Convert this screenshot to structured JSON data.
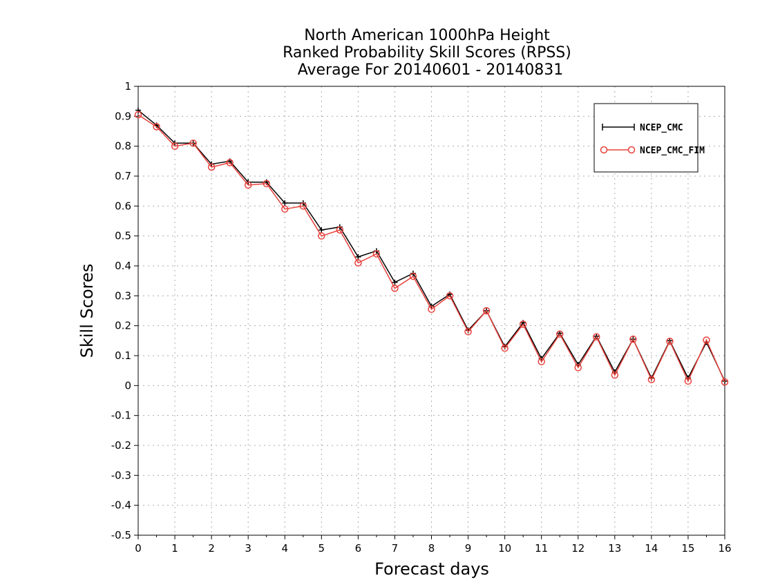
{
  "chart_data": {
    "type": "line",
    "title": [
      "North American 1000hPa Height",
      "Ranked Probability Skill Scores (RPSS)",
      "Average For 20140601 - 20140831"
    ],
    "xlabel": "Forecast days",
    "ylabel": "Skill Scores",
    "xlim": [
      0,
      16
    ],
    "ylim": [
      -0.5,
      1
    ],
    "xticks": [
      "0",
      "1",
      "2",
      "3",
      "4",
      "5",
      "6",
      "7",
      "8",
      "9",
      "10",
      "11",
      "12",
      "13",
      "14",
      "15",
      "16"
    ],
    "yticks": [
      "-0.5",
      "-0.4",
      "-0.3",
      "-0.2",
      "-0.1",
      "0",
      "0.1",
      "0.2",
      "0.3",
      "0.4",
      "0.5",
      "0.6",
      "0.7",
      "0.8",
      "0.9",
      "1"
    ],
    "grid": true,
    "legend_position": "top-right",
    "x": [
      0,
      0.5,
      1,
      1.5,
      2,
      2.5,
      3,
      3.5,
      4,
      4.5,
      5,
      5.5,
      6,
      6.5,
      7,
      7.5,
      8,
      8.5,
      9,
      9.5,
      10,
      10.5,
      11,
      11.5,
      12,
      12.5,
      13,
      13.5,
      14,
      14.5,
      15,
      15.5,
      16
    ],
    "series": [
      {
        "name": "NCEP_CMC",
        "color": "#000000",
        "marker": "plus",
        "values": [
          0.92,
          0.87,
          0.81,
          0.81,
          0.74,
          0.75,
          0.68,
          0.68,
          0.61,
          0.61,
          0.52,
          0.53,
          0.43,
          0.45,
          0.345,
          0.375,
          0.265,
          0.305,
          0.185,
          0.25,
          0.13,
          0.21,
          0.09,
          0.175,
          0.07,
          0.165,
          0.045,
          0.155,
          0.025,
          0.15,
          0.025,
          0.145,
          0.015
        ]
      },
      {
        "name": "NCEP_CMC_FIM",
        "color": "#e8403a",
        "marker": "circle",
        "values": [
          0.905,
          0.865,
          0.8,
          0.81,
          0.73,
          0.745,
          0.67,
          0.675,
          0.59,
          0.6,
          0.5,
          0.52,
          0.41,
          0.44,
          0.325,
          0.365,
          0.255,
          0.3,
          0.18,
          0.25,
          0.125,
          0.205,
          0.08,
          0.172,
          0.06,
          0.163,
          0.035,
          0.155,
          0.02,
          0.148,
          0.015,
          0.152,
          0.012
        ]
      }
    ]
  }
}
